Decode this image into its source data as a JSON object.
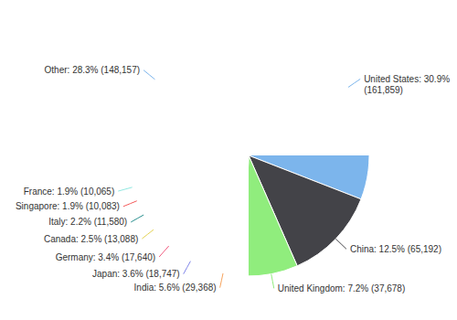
{
  "chart_data": {
    "type": "pie",
    "values": [
      30.9,
      12.5,
      7.2,
      5.6,
      3.6,
      3.4,
      2.5,
      2.2,
      1.9,
      1.9,
      28.3
    ],
    "value_labels": [
      "United States: 30.9% (161,859)",
      "China: 12.5% (65,192)",
      "United Kingdom: 7.2% (37,678)",
      "India: 5.6% (29,368)",
      "Japan: 3.6% (18,747)",
      "Germany: 3.4% (17,640)",
      "Canada: 2.5% (13,088)",
      "Italy: 2.2% (11,580)",
      "Singapore: 1.9% (10,083)",
      "France: 1.9% (10,065)",
      "Other: 28.3% (148,157)"
    ],
    "colors": [
      "#7cb5ec",
      "#434348",
      "#90ed7d",
      "#f7a35c",
      "#8085e9",
      "#f15c80",
      "#e4d354",
      "#2b908f",
      "#f45b5b",
      "#91e8e1",
      "#7cb5ec"
    ],
    "data_labels": true
  }
}
